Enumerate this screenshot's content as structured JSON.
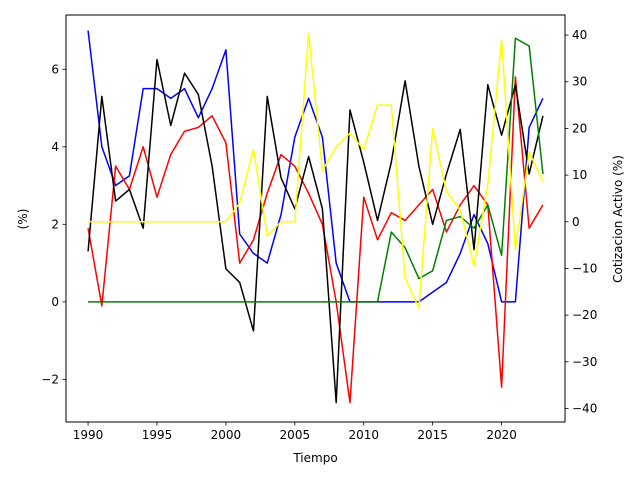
{
  "chart_data": {
    "type": "line",
    "title": "",
    "xlabel": "Tiempo",
    "ylabel_left": "(%)",
    "ylabel_right": "Cotizacion Activo (%)",
    "xlim": [
      1988.4,
      2024.6
    ],
    "ylim_left": [
      -3.1,
      7.4
    ],
    "ylim_right": [
      -42.9,
      44.3
    ],
    "grid": false,
    "legend": "none",
    "x_ticks": [
      1990,
      1995,
      2000,
      2005,
      2010,
      2015,
      2020
    ],
    "x_tick_labels": [
      "1990",
      "1995",
      "2000",
      "2005",
      "2010",
      "2015",
      "2020"
    ],
    "y_left_ticks": [
      -2,
      0,
      2,
      4,
      6
    ],
    "y_left_tick_labels": [
      "−2",
      "0",
      "2",
      "4",
      "6"
    ],
    "y_right_ticks": [
      -40,
      -30,
      -20,
      -10,
      0,
      10,
      20,
      30,
      40
    ],
    "y_right_tick_labels": [
      "−40",
      "−30",
      "−20",
      "−10",
      "0",
      "10",
      "20",
      "30",
      "40"
    ],
    "x": [
      1990,
      1991,
      1992,
      1993,
      1994,
      1995,
      1996,
      1997,
      1998,
      1999,
      2000,
      2001,
      2002,
      2003,
      2004,
      2005,
      2006,
      2007,
      2008,
      2009,
      2010,
      2011,
      2012,
      2013,
      2014,
      2015,
      2016,
      2017,
      2018,
      2019,
      2020,
      2021,
      2022,
      2023
    ],
    "series": [
      {
        "name": "blue",
        "axis": "left",
        "color": "#0000ff",
        "values": [
          7.0,
          4.0,
          3.0,
          3.25,
          5.5,
          5.5,
          5.25,
          5.5,
          4.75,
          5.5,
          6.5,
          1.75,
          1.25,
          1.0,
          2.25,
          4.25,
          5.25,
          4.25,
          1.0,
          0.0,
          0.0,
          0.0,
          0.0,
          0.0,
          0.0,
          0.25,
          0.5,
          1.25,
          2.25,
          1.5,
          0.0,
          0.0,
          4.5,
          5.25
        ]
      },
      {
        "name": "red",
        "axis": "left",
        "color": "#ff0000",
        "values": [
          1.9,
          -0.1,
          3.5,
          2.9,
          4.0,
          2.7,
          3.8,
          4.4,
          4.5,
          4.8,
          4.1,
          1.0,
          1.6,
          2.8,
          3.8,
          3.5,
          2.8,
          2.0,
          0.0,
          -2.6,
          2.7,
          1.6,
          2.3,
          2.1,
          2.5,
          2.9,
          1.8,
          2.5,
          3.0,
          2.5,
          -2.2,
          5.8,
          1.9,
          2.5
        ]
      },
      {
        "name": "black",
        "axis": "left",
        "color": "#000000",
        "values": [
          1.3,
          5.3,
          2.6,
          2.9,
          1.9,
          6.25,
          4.55,
          5.9,
          5.35,
          3.5,
          0.85,
          0.5,
          -0.75,
          5.3,
          3.2,
          2.4,
          3.75,
          2.4,
          -2.6,
          4.95,
          3.6,
          2.1,
          3.6,
          5.7,
          3.5,
          2.0,
          3.3,
          4.45,
          1.35,
          5.6,
          4.3,
          5.6,
          3.3,
          4.8
        ]
      },
      {
        "name": "green",
        "axis": "left",
        "color": "#008000",
        "values": [
          0.0,
          0.0,
          0.0,
          0.0,
          0.0,
          0.0,
          0.0,
          0.0,
          0.0,
          0.0,
          0.0,
          0.0,
          0.0,
          0.0,
          0.0,
          0.0,
          0.0,
          0.0,
          0.0,
          0.0,
          0.0,
          0.0,
          1.8,
          1.4,
          0.6,
          0.8,
          2.1,
          2.2,
          1.9,
          2.5,
          1.2,
          6.8,
          6.6,
          3.3
        ]
      },
      {
        "name": "yellow",
        "axis": "right",
        "color": "#ffff00",
        "values": [
          0.0,
          0.0,
          0.0,
          0.0,
          0.0,
          0.0,
          0.0,
          0.0,
          0.0,
          0.0,
          0.0,
          4.0,
          15.5,
          -3.0,
          0.0,
          0.0,
          40.3,
          11.0,
          16.0,
          19.0,
          15.5,
          25.0,
          25.0,
          -12.0,
          -18.5,
          20.0,
          6.5,
          2.5,
          -9.5,
          8.0,
          39.0,
          -6.0,
          15.0,
          8.5
        ]
      }
    ]
  }
}
